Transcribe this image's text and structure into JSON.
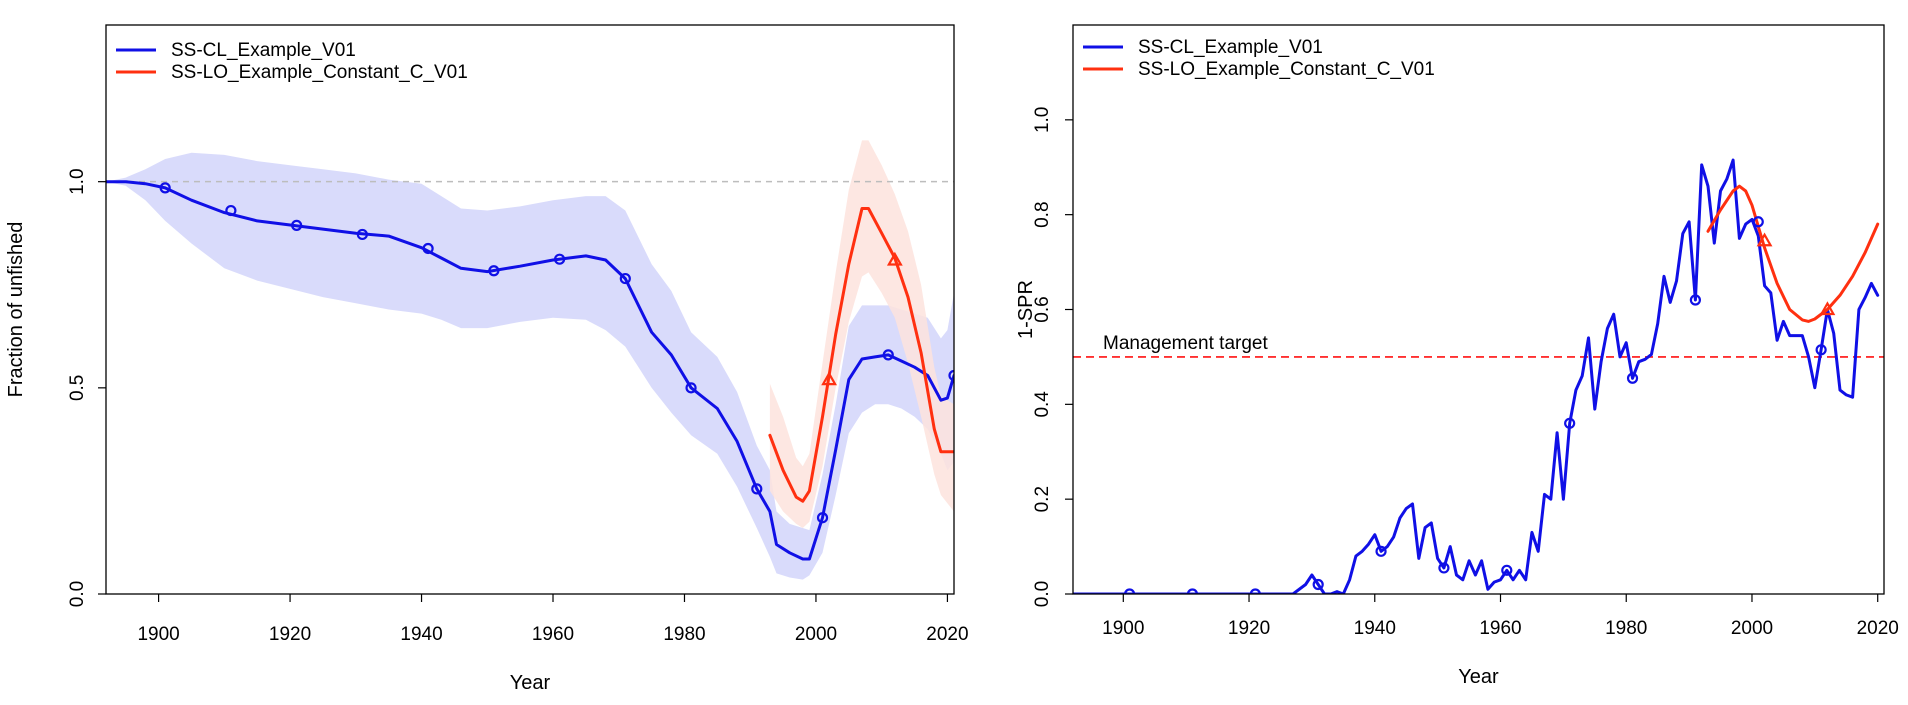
{
  "colors": {
    "cl_line": "#1010e6",
    "cl_band": "#d9dbfb",
    "lo_line": "#ff3010",
    "lo_band": "#fde3dd",
    "reference": "#bdbdbd",
    "target": "#ff3030"
  },
  "chart_data": [
    {
      "type": "line",
      "xlabel": "Year",
      "ylabel": "Fraction of unfished",
      "xlim": [
        1892,
        2021
      ],
      "ylim": [
        0,
        1.38
      ],
      "x_ticks": [
        1900,
        1920,
        1940,
        1960,
        1980,
        2000,
        2020
      ],
      "y_ticks": [
        0.0,
        0.5,
        1.0
      ],
      "y_tick_labels": [
        "0.0",
        "0.5",
        "1.0"
      ],
      "reference_line": 1.0,
      "grid": false,
      "legend_position": "top-left",
      "legend": [
        "SS-CL_Example_V01",
        "SS-LO_Example_Constant_C_V01"
      ],
      "series": [
        {
          "name": "SS-CL_Example_V01",
          "marker": "circle",
          "x": [
            1892,
            1895,
            1898,
            1901,
            1905,
            1910,
            1915,
            1920,
            1925,
            1930,
            1935,
            1940,
            1943,
            1946,
            1950,
            1955,
            1960,
            1965,
            1968,
            1971,
            1975,
            1978,
            1981,
            1985,
            1988,
            1991,
            1993,
            1994,
            1996,
            1998,
            1999,
            2001,
            2003,
            2005,
            2007,
            2009,
            2011,
            2013,
            2015,
            2017,
            2019,
            2020,
            2021
          ],
          "y": [
            1.0,
            1.0,
            0.995,
            0.985,
            0.955,
            0.925,
            0.905,
            0.895,
            0.885,
            0.875,
            0.868,
            0.84,
            0.815,
            0.79,
            0.782,
            0.795,
            0.81,
            0.82,
            0.81,
            0.765,
            0.635,
            0.58,
            0.5,
            0.45,
            0.37,
            0.255,
            0.2,
            0.12,
            0.1,
            0.085,
            0.085,
            0.185,
            0.35,
            0.52,
            0.57,
            0.575,
            0.58,
            0.565,
            0.55,
            0.53,
            0.47,
            0.475,
            0.53
          ],
          "lower": [
            1.0,
            0.99,
            0.955,
            0.905,
            0.85,
            0.79,
            0.76,
            0.74,
            0.72,
            0.705,
            0.69,
            0.68,
            0.665,
            0.645,
            0.645,
            0.66,
            0.67,
            0.665,
            0.64,
            0.6,
            0.5,
            0.44,
            0.385,
            0.34,
            0.26,
            0.16,
            0.09,
            0.05,
            0.04,
            0.035,
            0.045,
            0.1,
            0.24,
            0.39,
            0.44,
            0.46,
            0.46,
            0.45,
            0.43,
            0.4,
            0.34,
            0.3,
            0.32
          ],
          "upper": [
            1.0,
            1.01,
            1.03,
            1.055,
            1.07,
            1.065,
            1.05,
            1.04,
            1.03,
            1.02,
            1.005,
            0.995,
            0.965,
            0.935,
            0.93,
            0.94,
            0.955,
            0.965,
            0.965,
            0.93,
            0.8,
            0.735,
            0.635,
            0.575,
            0.49,
            0.36,
            0.3,
            0.2,
            0.17,
            0.16,
            0.155,
            0.29,
            0.46,
            0.65,
            0.7,
            0.7,
            0.7,
            0.69,
            0.68,
            0.67,
            0.62,
            0.64,
            0.73
          ]
        },
        {
          "name": "SS-LO_Example_Constant_C_V01",
          "marker": "triangle",
          "x": [
            1993,
            1995,
            1997,
            1998,
            1999,
            2001,
            2003,
            2005,
            2007,
            2008,
            2010,
            2012,
            2014,
            2016,
            2018,
            2019,
            2020,
            2021
          ],
          "y": [
            0.385,
            0.3,
            0.235,
            0.225,
            0.25,
            0.43,
            0.63,
            0.8,
            0.935,
            0.935,
            0.875,
            0.815,
            0.72,
            0.585,
            0.4,
            0.345,
            0.345,
            0.345
          ],
          "lower": [
            0.25,
            0.2,
            0.17,
            0.16,
            0.175,
            0.31,
            0.5,
            0.66,
            0.77,
            0.78,
            0.73,
            0.67,
            0.56,
            0.43,
            0.29,
            0.24,
            0.22,
            0.2
          ],
          "upper": [
            0.51,
            0.43,
            0.33,
            0.31,
            0.34,
            0.56,
            0.78,
            0.98,
            1.1,
            1.1,
            1.04,
            0.97,
            0.88,
            0.75,
            0.55,
            0.48,
            0.47,
            0.46
          ]
        }
      ],
      "markers": [
        {
          "series": 0,
          "x": [
            1901,
            1911,
            1921,
            1931,
            1941,
            1951,
            1961,
            1971,
            1981,
            1991,
            2001,
            2011,
            2021
          ],
          "y": [
            0.985,
            0.93,
            0.894,
            0.872,
            0.838,
            0.784,
            0.812,
            0.765,
            0.5,
            0.255,
            0.185,
            0.58,
            0.53
          ]
        },
        {
          "series": 1,
          "x": [
            2002,
            2012
          ],
          "y": [
            0.52,
            0.81
          ]
        }
      ]
    },
    {
      "type": "line",
      "xlabel": "Year",
      "ylabel": "1-SPR",
      "xlim": [
        1892,
        2021
      ],
      "ylim": [
        0,
        1.2
      ],
      "x_ticks": [
        1900,
        1920,
        1940,
        1960,
        1980,
        2000,
        2020
      ],
      "y_ticks": [
        0.0,
        0.2,
        0.4,
        0.6,
        0.8,
        1.0
      ],
      "y_tick_labels": [
        "0.0",
        "0.2",
        "0.4",
        "0.6",
        "0.8",
        "1.0"
      ],
      "grid": false,
      "legend_position": "top-left",
      "legend": [
        "SS-CL_Example_V01",
        "SS-LO_Example_Constant_C_V01"
      ],
      "annotation": {
        "text": "Management target",
        "y": 0.5
      },
      "series": [
        {
          "name": "SS-CL_Example_V01",
          "marker": "circle",
          "x": [
            1892,
            1927,
            1929,
            1930,
            1931,
            1932,
            1933,
            1934,
            1935,
            1936,
            1937,
            1938,
            1939,
            1940,
            1941,
            1942,
            1943,
            1944,
            1945,
            1946,
            1947,
            1948,
            1949,
            1950,
            1951,
            1952,
            1953,
            1954,
            1955,
            1956,
            1957,
            1958,
            1959,
            1960,
            1961,
            1962,
            1963,
            1964,
            1965,
            1966,
            1967,
            1968,
            1969,
            1970,
            1971,
            1972,
            1973,
            1974,
            1975,
            1976,
            1977,
            1978,
            1979,
            1980,
            1981,
            1982,
            1983,
            1984,
            1985,
            1986,
            1987,
            1988,
            1989,
            1990,
            1991,
            1992,
            1993,
            1994,
            1995,
            1996,
            1997,
            1998,
            1999,
            2000,
            2001,
            2002,
            2003,
            2004,
            2005,
            2006,
            2007,
            2008,
            2009,
            2010,
            2011,
            2012,
            2013,
            2014,
            2015,
            2016,
            2017,
            2018,
            2019,
            2020
          ],
          "y": [
            0.0,
            0.0,
            0.02,
            0.04,
            0.02,
            0.0,
            0.0,
            0.005,
            0.0,
            0.03,
            0.08,
            0.09,
            0.105,
            0.125,
            0.09,
            0.1,
            0.12,
            0.16,
            0.18,
            0.19,
            0.075,
            0.14,
            0.15,
            0.075,
            0.055,
            0.1,
            0.04,
            0.03,
            0.07,
            0.04,
            0.07,
            0.01,
            0.025,
            0.03,
            0.05,
            0.03,
            0.05,
            0.03,
            0.13,
            0.09,
            0.21,
            0.2,
            0.34,
            0.2,
            0.36,
            0.43,
            0.46,
            0.54,
            0.39,
            0.49,
            0.56,
            0.59,
            0.5,
            0.53,
            0.455,
            0.49,
            0.495,
            0.505,
            0.57,
            0.67,
            0.615,
            0.66,
            0.76,
            0.785,
            0.62,
            0.905,
            0.86,
            0.74,
            0.85,
            0.875,
            0.915,
            0.75,
            0.78,
            0.79,
            0.755,
            0.65,
            0.635,
            0.535,
            0.575,
            0.545,
            0.545,
            0.545,
            0.5,
            0.435,
            0.515,
            0.6,
            0.55,
            0.43,
            0.42,
            0.415,
            0.6,
            0.625,
            0.655,
            0.63
          ]
        },
        {
          "name": "SS-LO_Example_Constant_C_V01",
          "marker": "triangle",
          "x": [
            1993,
            1995,
            1997,
            1998,
            1999,
            2000,
            2002,
            2004,
            2006,
            2008,
            2009,
            2010,
            2012,
            2014,
            2016,
            2018,
            2020
          ],
          "y": [
            0.765,
            0.81,
            0.85,
            0.86,
            0.85,
            0.82,
            0.73,
            0.655,
            0.6,
            0.578,
            0.575,
            0.58,
            0.6,
            0.63,
            0.67,
            0.72,
            0.78
          ]
        }
      ],
      "markers": [
        {
          "series": 0,
          "x": [
            1901,
            1911,
            1921,
            1931,
            1941,
            1951,
            1961,
            1971,
            1981,
            1991,
            2001,
            2011
          ],
          "y": [
            0.0,
            0.0,
            0.0,
            0.02,
            0.09,
            0.055,
            0.05,
            0.36,
            0.455,
            0.62,
            0.785,
            0.515
          ]
        },
        {
          "series": 1,
          "x": [
            2002,
            2012
          ],
          "y": [
            0.745,
            0.6
          ]
        }
      ]
    }
  ]
}
